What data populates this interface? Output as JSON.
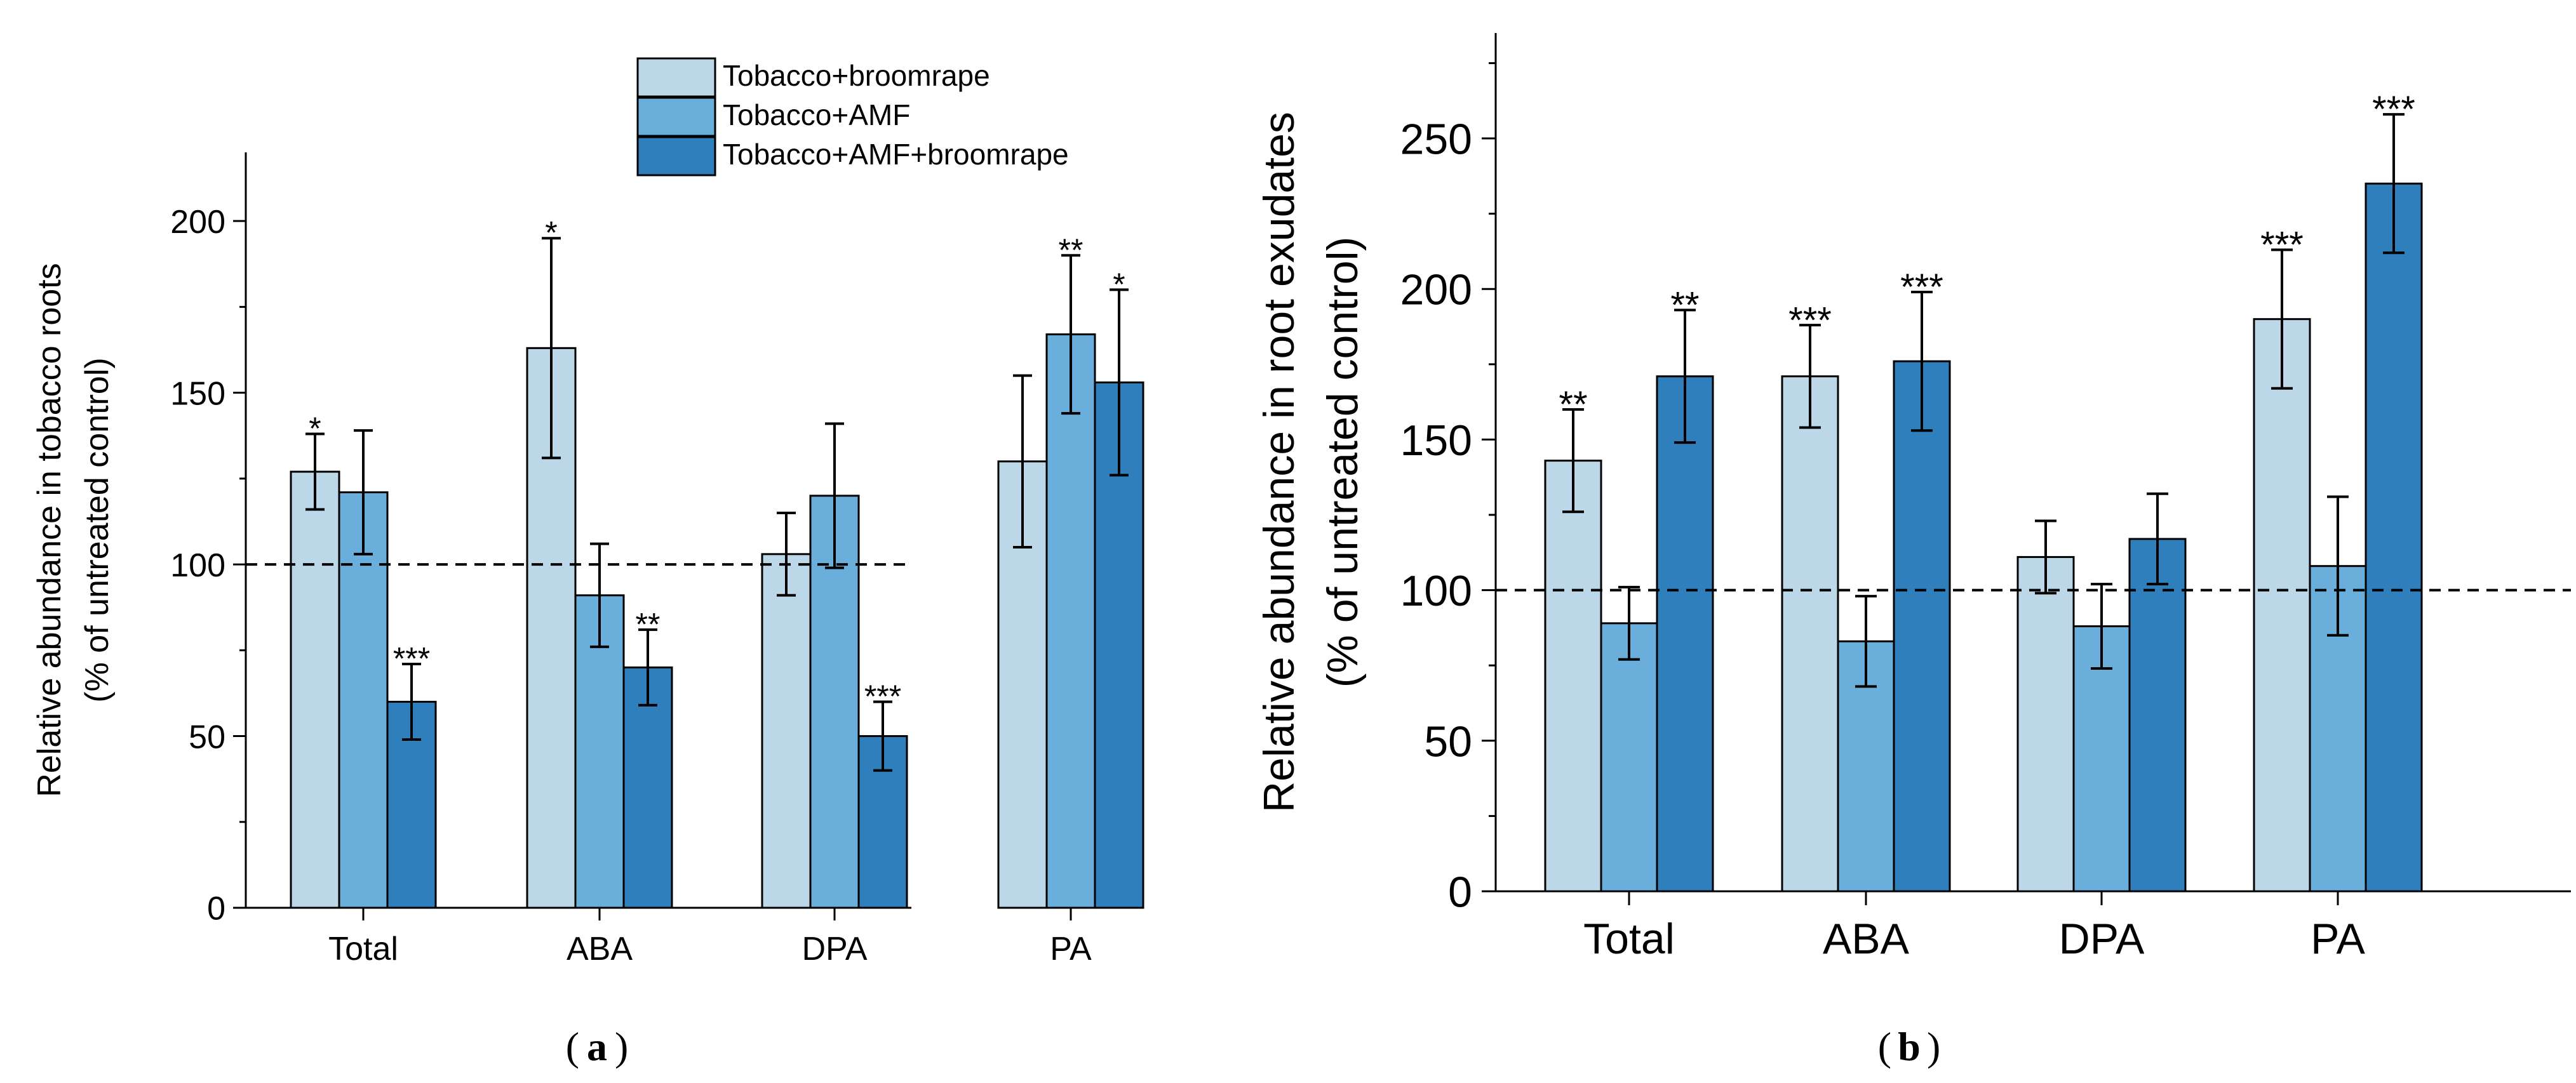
{
  "colors": {
    "series": [
      "#bcd7e8",
      "#6aafdb",
      "#2f7fbd"
    ],
    "axis": "#000000",
    "errorbar": "#000000",
    "reference_line": "#000000"
  },
  "legend": {
    "items": [
      "Tobacco+broomrape",
      "Tobacco+AMF",
      "Tobacco+AMF+broomrape"
    ]
  },
  "panels": {
    "a": {
      "label": "a"
    },
    "b": {
      "label": "b"
    }
  },
  "chart_data": [
    {
      "id": "a",
      "type": "bar",
      "panel_label": "(a)",
      "title": "",
      "xlabel": "",
      "ylabel": "Relative abundance in tobacco roots",
      "ylabel_line2": "(% of untreated control)",
      "categories": [
        "Total",
        "ABA",
        "DPA",
        "PA"
      ],
      "ylim": [
        0,
        220
      ],
      "yticks": [
        0,
        50,
        100,
        150,
        200
      ],
      "ytick_labels": [
        "0",
        "50",
        "100",
        "150",
        "200"
      ],
      "reference_line": 100,
      "legend_position": "top-right",
      "series": [
        {
          "name": "Tobacco+broomrape",
          "values": [
            127,
            163,
            103,
            130
          ],
          "errors": [
            11,
            32,
            12,
            25
          ],
          "significance": [
            "*",
            "*",
            "",
            ""
          ]
        },
        {
          "name": "Tobacco+AMF",
          "values": [
            121,
            91,
            120,
            167
          ],
          "errors": [
            18,
            15,
            21,
            23
          ],
          "significance": [
            "",
            "",
            "",
            "**"
          ]
        },
        {
          "name": "Tobacco+AMF+broomrape",
          "values": [
            60,
            70,
            50,
            153
          ],
          "errors": [
            11,
            11,
            10,
            27
          ],
          "significance": [
            "***",
            "**",
            "***",
            "*"
          ]
        }
      ]
    },
    {
      "id": "b",
      "type": "bar",
      "panel_label": "(b)",
      "title": "",
      "xlabel": "",
      "ylabel": "Relative abundance in root exudates",
      "ylabel_line2": "(% of untreated control)",
      "categories": [
        "Total",
        "ABA",
        "DPA",
        "PA"
      ],
      "ylim": [
        0,
        285
      ],
      "yticks": [
        0,
        50,
        100,
        150,
        200,
        250
      ],
      "ytick_labels": [
        "0",
        "50",
        "100",
        "150",
        "200",
        "250"
      ],
      "reference_line": 100,
      "series": [
        {
          "name": "Tobacco+broomrape",
          "values": [
            143,
            171,
            111,
            190
          ],
          "errors": [
            17,
            17,
            12,
            23
          ],
          "significance": [
            "**",
            "***",
            "",
            "***"
          ]
        },
        {
          "name": "Tobacco+AMF",
          "values": [
            89,
            83,
            88,
            108
          ],
          "errors": [
            12,
            15,
            14,
            23
          ],
          "significance": [
            "",
            "",
            "",
            ""
          ]
        },
        {
          "name": "Tobacco+AMF+broomrape",
          "values": [
            171,
            176,
            117,
            235
          ],
          "errors": [
            22,
            23,
            15,
            23
          ],
          "significance": [
            "**",
            "***",
            "",
            "***"
          ]
        }
      ]
    }
  ]
}
